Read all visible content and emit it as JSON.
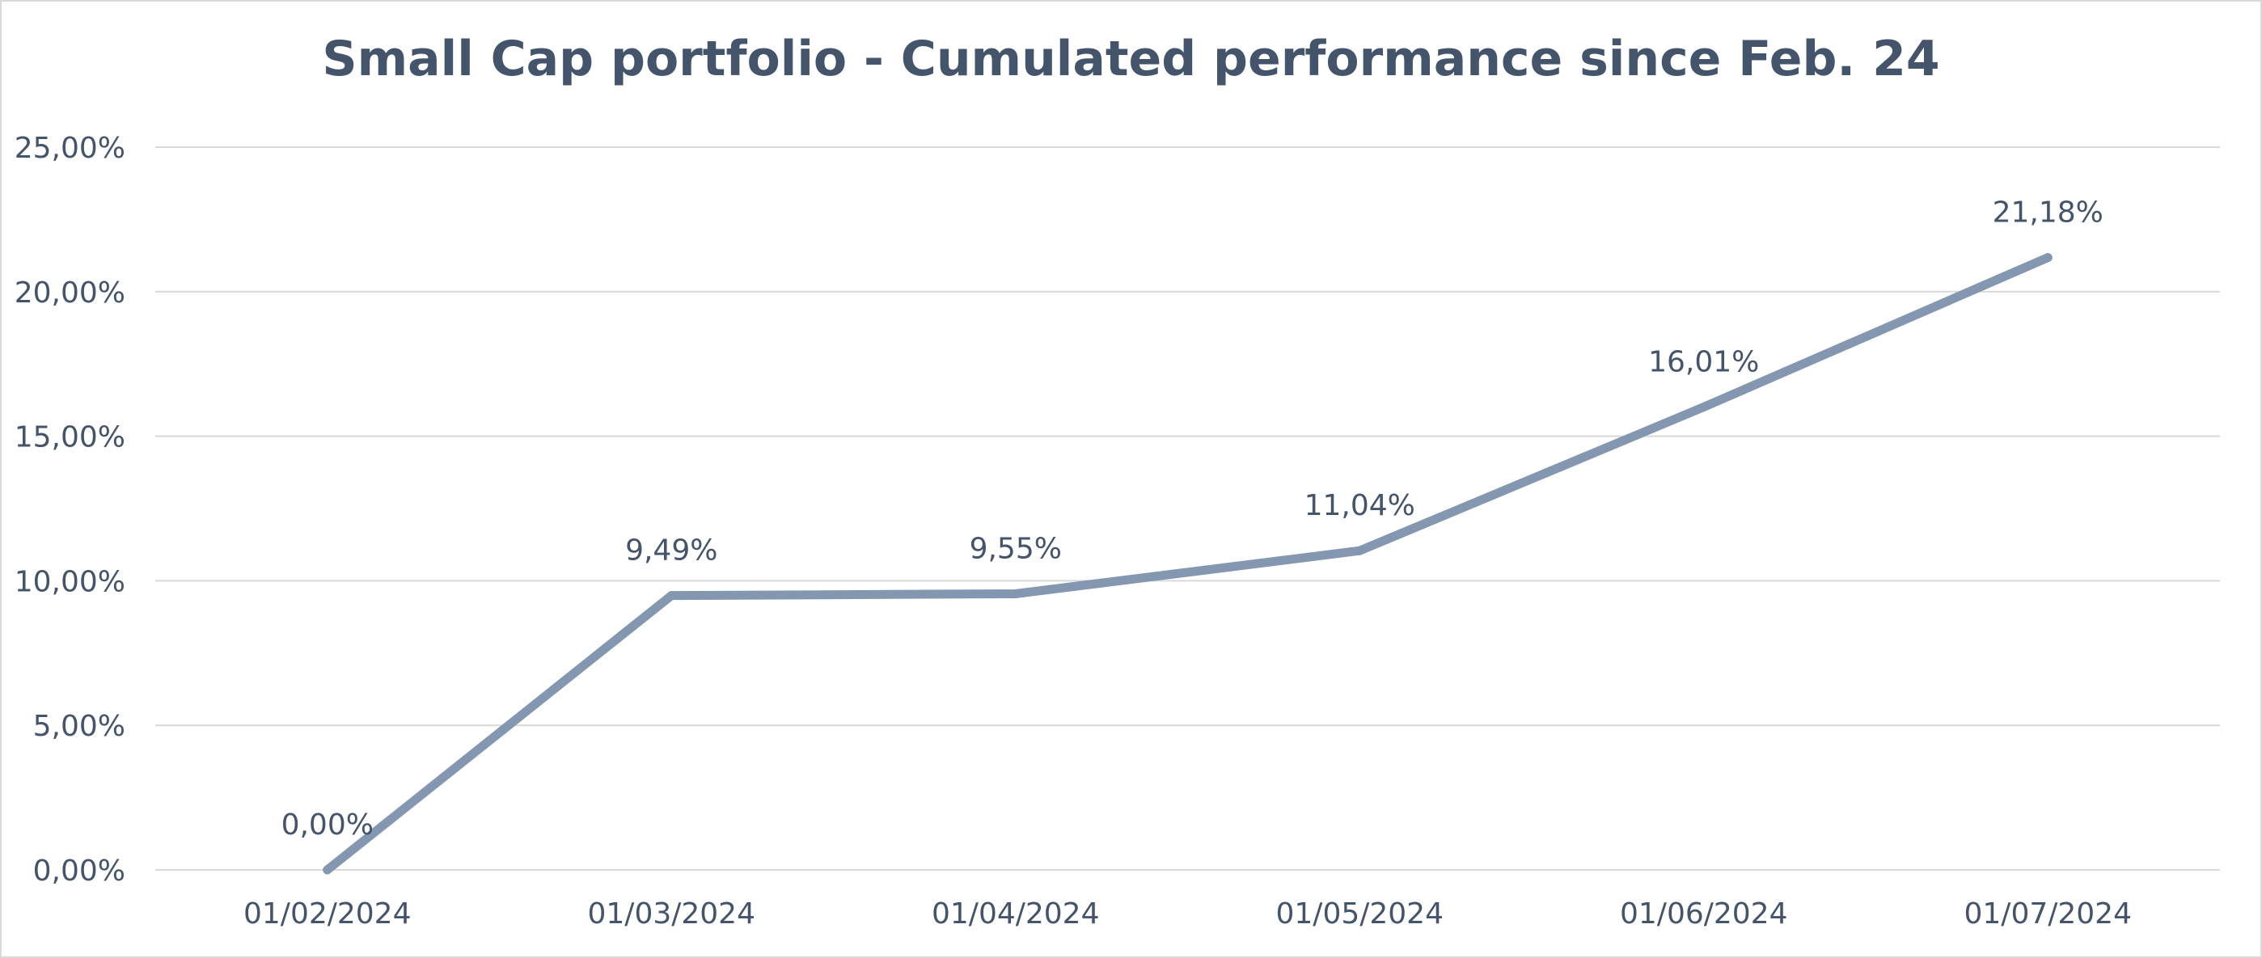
{
  "chart_data": {
    "type": "line",
    "title": "Small Cap portfolio - Cumulated performance since Feb. 24",
    "xlabel": "",
    "ylabel": "",
    "categories": [
      "01/02/2024",
      "01/03/2024",
      "01/04/2024",
      "01/05/2024",
      "01/06/2024",
      "01/07/2024"
    ],
    "series": [
      {
        "name": "Small Cap portfolio",
        "values": [
          0.0,
          9.49,
          9.55,
          11.04,
          16.01,
          21.18
        ],
        "labels": [
          "0,00%",
          "9,49%",
          "9,55%",
          "11,04%",
          "16,01%",
          "21,18%"
        ],
        "color": "#8497b0"
      }
    ],
    "ylim": [
      0,
      25
    ],
    "yticks": [
      0,
      5,
      10,
      15,
      20,
      25
    ],
    "ytick_labels": [
      "0,00%",
      "5,00%",
      "10,00%",
      "15,00%",
      "20,00%",
      "25,00%"
    ],
    "grid": true,
    "legend": "none",
    "colors": {
      "text": "#44546a",
      "grid": "#d9d9d9"
    }
  }
}
